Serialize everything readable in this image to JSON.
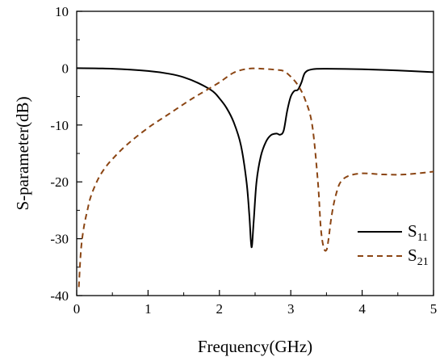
{
  "chart_data": {
    "type": "line",
    "xlabel": "Frequency(GHz)",
    "ylabel": "S-parameter(dB)",
    "xlim": [
      0,
      5
    ],
    "ylim": [
      -40,
      10
    ],
    "xticks": [
      "0",
      "1",
      "2",
      "3",
      "4",
      "5"
    ],
    "yticks": [
      "10",
      "0",
      "-10",
      "-20",
      "-30",
      "-40"
    ],
    "grid": false,
    "legend_position": "bottom-right",
    "series": [
      {
        "name": "S",
        "subscript": "11",
        "color": "#000000",
        "style": "solid",
        "x": [
          0,
          0.5,
          1.0,
          1.3,
          1.5,
          1.7,
          1.9,
          2.0,
          2.1,
          2.2,
          2.3,
          2.38,
          2.42,
          2.45,
          2.48,
          2.52,
          2.58,
          2.65,
          2.72,
          2.8,
          2.85,
          2.9,
          2.95,
          3.0,
          3.05,
          3.1,
          3.15,
          3.2,
          3.3,
          3.5,
          4.0,
          4.5,
          5.0
        ],
        "y": [
          0,
          -0.1,
          -0.5,
          -1.0,
          -1.6,
          -2.6,
          -4.0,
          -5.3,
          -7.0,
          -9.5,
          -13.5,
          -20.0,
          -26.0,
          -31.5,
          -27.0,
          -20.0,
          -15.5,
          -13.0,
          -11.8,
          -11.5,
          -11.7,
          -11.0,
          -7.5,
          -5.0,
          -4.0,
          -3.8,
          -2.5,
          -0.8,
          -0.2,
          -0.1,
          -0.2,
          -0.4,
          -0.7
        ]
      },
      {
        "name": "S",
        "subscript": "21",
        "color": "#8b4513",
        "style": "dashed",
        "x": [
          0.03,
          0.06,
          0.1,
          0.15,
          0.2,
          0.3,
          0.4,
          0.5,
          0.7,
          1.0,
          1.3,
          1.6,
          1.8,
          2.0,
          2.2,
          2.4,
          2.6,
          2.8,
          2.9,
          3.0,
          3.1,
          3.2,
          3.3,
          3.38,
          3.42,
          3.46,
          3.5,
          3.53,
          3.56,
          3.6,
          3.65,
          3.7,
          3.8,
          4.0,
          4.3,
          4.6,
          5.0
        ],
        "y": [
          -38.5,
          -32.0,
          -28.0,
          -25.0,
          -22.5,
          -19.5,
          -17.5,
          -16.0,
          -13.5,
          -10.5,
          -8.0,
          -5.5,
          -4.0,
          -2.5,
          -0.8,
          -0.1,
          -0.1,
          -0.3,
          -0.5,
          -1.5,
          -3.0,
          -5.5,
          -10.0,
          -20.0,
          -28.0,
          -31.5,
          -32.0,
          -30.0,
          -27.0,
          -24.0,
          -21.5,
          -20.0,
          -19.0,
          -18.5,
          -18.7,
          -18.7,
          -18.2
        ]
      }
    ]
  }
}
